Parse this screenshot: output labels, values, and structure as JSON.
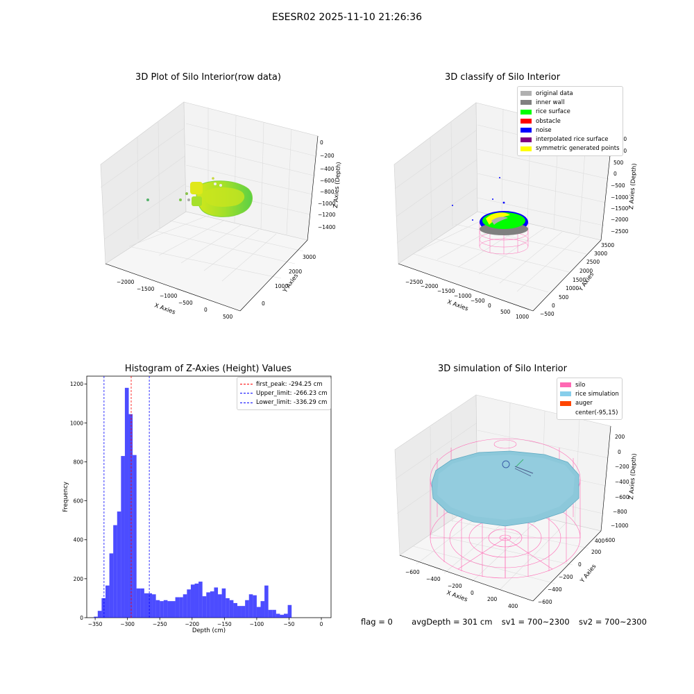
{
  "suptitle": "ESESR02 2025-11-10 21:26:36",
  "panels": {
    "raw": {
      "title": "3D Plot of Silo Interior(row data)",
      "xlabel": "X Axies",
      "ylabel": "Y Axies",
      "zlabel": "Z Axies (Depth)",
      "xticks": [
        "−2000",
        "−1500",
        "−1000",
        "−500",
        "0",
        "500"
      ],
      "yticks": [
        "0",
        "1000",
        "2000",
        "3000"
      ],
      "zticks": [
        "0",
        "−200",
        "−400",
        "−600",
        "−800",
        "−1000",
        "−1200",
        "−1400"
      ]
    },
    "classify": {
      "title": "3D classify of Silo Interior",
      "xlabel": "X Axies",
      "ylabel": "Y Axies",
      "zlabel": "Z Axies (Depth)",
      "xticks": [
        "−2500",
        "−2000",
        "−1500",
        "−1000",
        "−500",
        "0",
        "500",
        "1000"
      ],
      "yticks": [
        "−500",
        "0",
        "500",
        "1000",
        "1500",
        "2000",
        "2500",
        "3000",
        "3500"
      ],
      "zticks": [
        "1500",
        "1000",
        "500",
        "0",
        "−500",
        "−1000",
        "−1500",
        "−2000",
        "−2500"
      ],
      "legend": [
        {
          "label": "original data",
          "color": "#b0b0b0"
        },
        {
          "label": "inner wall",
          "color": "#808080"
        },
        {
          "label": "rice surface",
          "color": "#00ff00"
        },
        {
          "label": "obstacle",
          "color": "#ff0000"
        },
        {
          "label": "noise",
          "color": "#0000ff"
        },
        {
          "label": "interpolated rice surface",
          "color": "#800080"
        },
        {
          "label": "symmetric generated points",
          "color": "#ffff00"
        }
      ]
    },
    "simulation": {
      "title": "3D simulation of Silo Interior",
      "xlabel": "X Axies",
      "ylabel": "Y Axies",
      "zlabel": "Z Axies (Depth)",
      "xticks": [
        "−600",
        "−400",
        "−200",
        "0",
        "200",
        "400"
      ],
      "yticks": [
        "−600",
        "−400",
        "−200",
        "0",
        "200",
        "400",
        "600"
      ],
      "zticks": [
        "200",
        "0",
        "−200",
        "−400",
        "−600",
        "−800",
        "−1000"
      ],
      "legend": [
        {
          "label": "silo",
          "color": "#ff69b4"
        },
        {
          "label": "rice simulation",
          "color": "#87ceeb"
        },
        {
          "label": "auger",
          "color": "#ff4500"
        },
        {
          "label": "center(-95,15)",
          "color": "#ffffff"
        }
      ]
    }
  },
  "footer": {
    "flag": "flag = 0",
    "avg": "avgDepth = 301 cm",
    "sv1": "sv1 = 700~2300",
    "sv2": "sv2 = 700~2300"
  },
  "chart_data": [
    {
      "type": "bar",
      "title": "Histogram of Z-Axies (Height) Values",
      "xlabel": "Depth (cm)",
      "ylabel": "Frequency",
      "xlim": [
        -363,
        15
      ],
      "ylim": [
        0,
        1240
      ],
      "xticks": [
        -350,
        -300,
        -250,
        -200,
        -150,
        -100,
        -50,
        0
      ],
      "yticks": [
        0,
        200,
        400,
        600,
        800,
        1000,
        1200
      ],
      "bin_start": -352,
      "bin_width": 6,
      "values": [
        5,
        35,
        100,
        165,
        330,
        475,
        545,
        830,
        1180,
        1045,
        835,
        150,
        150,
        125,
        125,
        120,
        90,
        85,
        90,
        85,
        85,
        105,
        105,
        120,
        145,
        170,
        175,
        185,
        110,
        130,
        135,
        155,
        120,
        150,
        100,
        90,
        75,
        60,
        60,
        90,
        120,
        115,
        55,
        85,
        165,
        40,
        40,
        20,
        15,
        20,
        65
      ],
      "color": "#0000ff",
      "lines": [
        {
          "label": "first_peak: -294.25 cm",
          "x": -294.25,
          "color": "#ff0000"
        },
        {
          "label": "Upper_limit: -266.23 cm",
          "x": -266.23,
          "color": "#0000ff"
        },
        {
          "label": "Lower_limit: -336.29 cm",
          "x": -336.29,
          "color": "#0000ff"
        }
      ]
    }
  ]
}
